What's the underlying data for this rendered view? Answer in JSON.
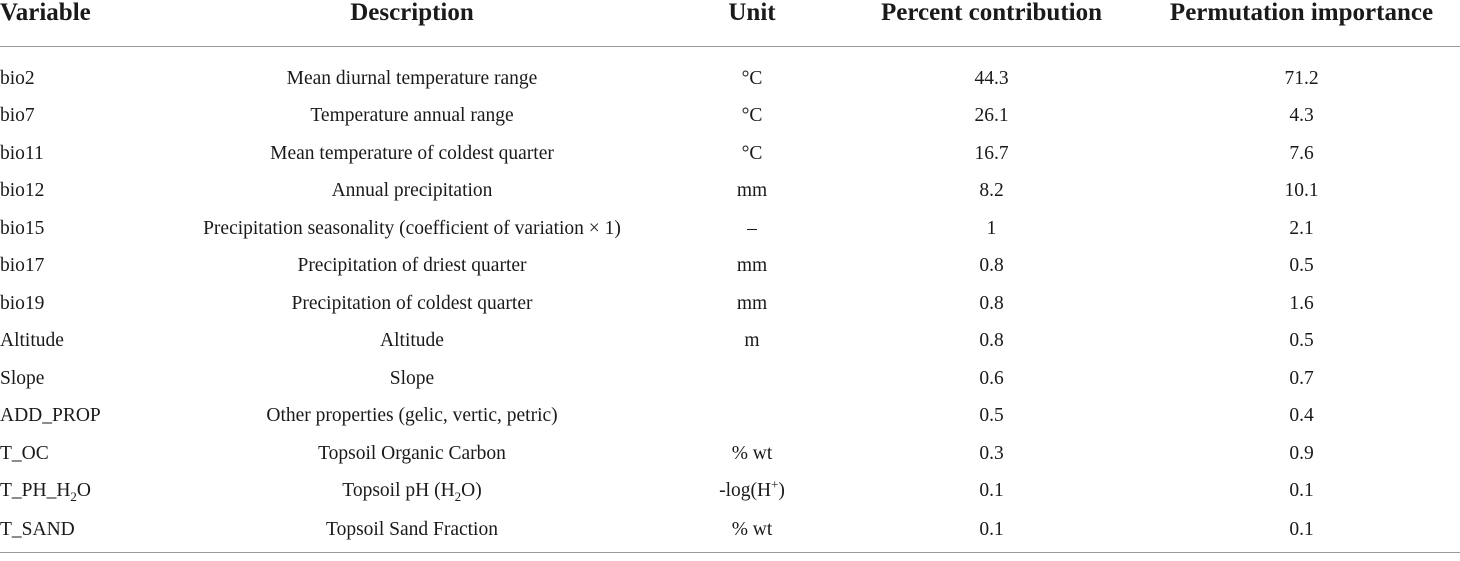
{
  "table": {
    "headers": {
      "variable": "Variable",
      "description": "Description",
      "unit": "Unit",
      "percent": "Percent contribution",
      "permutation": "Permutation importance"
    },
    "rows": [
      {
        "variable": "bio2",
        "description": "Mean diurnal temperature range",
        "unit": "°C",
        "percent": "44.3",
        "permutation": "71.2"
      },
      {
        "variable": "bio7",
        "description": "Temperature annual range",
        "unit": "°C",
        "percent": "26.1",
        "permutation": "4.3"
      },
      {
        "variable": "bio11",
        "description": "Mean temperature of coldest quarter",
        "unit": "°C",
        "percent": "16.7",
        "permutation": "7.6"
      },
      {
        "variable": "bio12",
        "description": "Annual precipitation",
        "unit": "mm",
        "percent": "8.2",
        "permutation": "10.1"
      },
      {
        "variable": "bio15",
        "description": "Precipitation seasonality (coefficient of variation × 1)",
        "unit": "–",
        "percent": "1",
        "permutation": "2.1"
      },
      {
        "variable": "bio17",
        "description": "Precipitation of driest quarter",
        "unit": "mm",
        "percent": "0.8",
        "permutation": "0.5"
      },
      {
        "variable": "bio19",
        "description": "Precipitation of coldest quarter",
        "unit": "mm",
        "percent": "0.8",
        "permutation": "1.6"
      },
      {
        "variable": "Altitude",
        "description": "Altitude",
        "unit": "m",
        "percent": "0.8",
        "permutation": "0.5"
      },
      {
        "variable": "Slope",
        "description": "Slope",
        "unit": "",
        "percent": "0.6",
        "permutation": "0.7"
      },
      {
        "variable": "ADD_PROP",
        "description": "Other properties (gelic, vertic, petric)",
        "unit": "",
        "percent": "0.5",
        "permutation": "0.4"
      },
      {
        "variable": "T_OC",
        "description": "Topsoil Organic Carbon",
        "unit": "% wt",
        "percent": "0.3",
        "permutation": "0.9"
      },
      {
        "variable_parts": [
          "T_PH_H",
          "2",
          "O"
        ],
        "description_parts": [
          "Topsoil pH (H",
          "2",
          "O)"
        ],
        "unit_parts": [
          "-log(H",
          "+",
          ")"
        ],
        "percent": "0.1",
        "permutation": "0.1"
      },
      {
        "variable": "T_SAND",
        "description": "Topsoil Sand Fraction",
        "unit": "% wt",
        "percent": "0.1",
        "permutation": "0.1"
      }
    ]
  }
}
